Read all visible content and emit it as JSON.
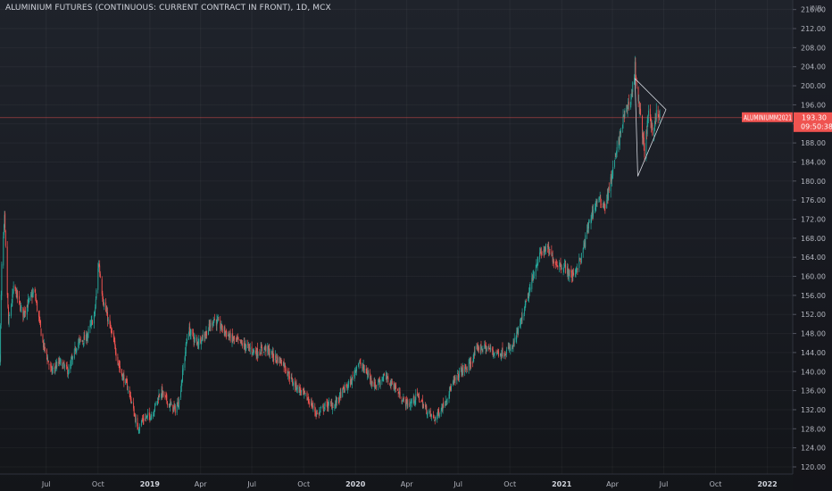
{
  "header": {
    "title": "ALUMINIUM FUTURES (CONTINUOUS: CURRENT CONTRACT IN FRONT), 1D, MCX"
  },
  "price_axis": {
    "currency": "INR"
  },
  "last_price": {
    "symbol": "ALUMINIUMM2021",
    "price": "193.30",
    "countdown": "09:50:38"
  },
  "colors": {
    "up": "#26a69a",
    "down": "#ef5350",
    "pattern": "#d1d4dc",
    "price_line": "#ef5350"
  },
  "chart_data": {
    "type": "candlestick",
    "yticks": [
      120,
      124,
      128,
      132,
      136,
      140,
      144,
      148,
      152,
      156,
      160,
      164,
      168,
      172,
      176,
      180,
      184,
      188,
      192,
      196,
      200,
      204,
      208,
      212,
      216
    ],
    "ylim": [
      118.5,
      218
    ],
    "xlim": [
      "2018-04-10",
      "2022-02-15"
    ],
    "xticks": [
      {
        "label": "Jul",
        "date": "2018-07-01"
      },
      {
        "label": "Oct",
        "date": "2018-10-01"
      },
      {
        "label": "2019",
        "date": "2019-01-01",
        "year": true
      },
      {
        "label": "Apr",
        "date": "2019-04-01"
      },
      {
        "label": "Jul",
        "date": "2019-07-01"
      },
      {
        "label": "Oct",
        "date": "2019-10-01"
      },
      {
        "label": "2020",
        "date": "2020-01-01",
        "year": true
      },
      {
        "label": "Apr",
        "date": "2020-04-01"
      },
      {
        "label": "Jul",
        "date": "2020-07-01"
      },
      {
        "label": "Oct",
        "date": "2020-10-01"
      },
      {
        "label": "2021",
        "date": "2021-01-01",
        "year": true
      },
      {
        "label": "Apr",
        "date": "2021-04-01"
      },
      {
        "label": "Jul",
        "date": "2021-07-01"
      },
      {
        "label": "Oct",
        "date": "2021-10-01"
      },
      {
        "label": "2022",
        "date": "2022-01-01",
        "year": true
      }
    ],
    "price_path": [
      {
        "date": "2018-04-10",
        "close": 143
      },
      {
        "date": "2018-04-13",
        "close": 162
      },
      {
        "date": "2018-04-18",
        "close": 172
      },
      {
        "date": "2018-04-25",
        "close": 150
      },
      {
        "date": "2018-05-05",
        "close": 158
      },
      {
        "date": "2018-05-20",
        "close": 152
      },
      {
        "date": "2018-06-10",
        "close": 157
      },
      {
        "date": "2018-06-25",
        "close": 146
      },
      {
        "date": "2018-07-10",
        "close": 140
      },
      {
        "date": "2018-07-25",
        "close": 142
      },
      {
        "date": "2018-08-10",
        "close": 140
      },
      {
        "date": "2018-08-25",
        "close": 146
      },
      {
        "date": "2018-09-10",
        "close": 147
      },
      {
        "date": "2018-09-25",
        "close": 152
      },
      {
        "date": "2018-10-02",
        "close": 163
      },
      {
        "date": "2018-10-10",
        "close": 155
      },
      {
        "date": "2018-10-25",
        "close": 148
      },
      {
        "date": "2018-11-10",
        "close": 140
      },
      {
        "date": "2018-11-25",
        "close": 136
      },
      {
        "date": "2018-12-10",
        "close": 128
      },
      {
        "date": "2018-12-20",
        "close": 130
      },
      {
        "date": "2019-01-05",
        "close": 131
      },
      {
        "date": "2019-01-20",
        "close": 136
      },
      {
        "date": "2019-02-05",
        "close": 133
      },
      {
        "date": "2019-02-15",
        "close": 132
      },
      {
        "date": "2019-02-22",
        "close": 134
      },
      {
        "date": "2019-03-10",
        "close": 149
      },
      {
        "date": "2019-03-25",
        "close": 146
      },
      {
        "date": "2019-04-10",
        "close": 148
      },
      {
        "date": "2019-04-25",
        "close": 151
      },
      {
        "date": "2019-05-10",
        "close": 149
      },
      {
        "date": "2019-05-25",
        "close": 147
      },
      {
        "date": "2019-06-10",
        "close": 146
      },
      {
        "date": "2019-06-25",
        "close": 145
      },
      {
        "date": "2019-07-10",
        "close": 144
      },
      {
        "date": "2019-07-25",
        "close": 145
      },
      {
        "date": "2019-08-10",
        "close": 143
      },
      {
        "date": "2019-08-25",
        "close": 142
      },
      {
        "date": "2019-09-10",
        "close": 138
      },
      {
        "date": "2019-09-25",
        "close": 136
      },
      {
        "date": "2019-10-10",
        "close": 134
      },
      {
        "date": "2019-10-25",
        "close": 131
      },
      {
        "date": "2019-11-10",
        "close": 133
      },
      {
        "date": "2019-11-25",
        "close": 133
      },
      {
        "date": "2019-12-10",
        "close": 136
      },
      {
        "date": "2019-12-25",
        "close": 138
      },
      {
        "date": "2020-01-05",
        "close": 142
      },
      {
        "date": "2020-01-20",
        "close": 140
      },
      {
        "date": "2020-02-05",
        "close": 137
      },
      {
        "date": "2020-02-20",
        "close": 139
      },
      {
        "date": "2020-03-10",
        "close": 137
      },
      {
        "date": "2020-03-25",
        "close": 134
      },
      {
        "date": "2020-04-05",
        "close": 133
      },
      {
        "date": "2020-04-20",
        "close": 135
      },
      {
        "date": "2020-05-05",
        "close": 132
      },
      {
        "date": "2020-05-20",
        "close": 130
      },
      {
        "date": "2020-06-05",
        "close": 133
      },
      {
        "date": "2020-06-20",
        "close": 137
      },
      {
        "date": "2020-07-05",
        "close": 140
      },
      {
        "date": "2020-07-20",
        "close": 141
      },
      {
        "date": "2020-08-05",
        "close": 145
      },
      {
        "date": "2020-08-20",
        "close": 145
      },
      {
        "date": "2020-09-05",
        "close": 144
      },
      {
        "date": "2020-09-20",
        "close": 144
      },
      {
        "date": "2020-10-05",
        "close": 145
      },
      {
        "date": "2020-10-20",
        "close": 150
      },
      {
        "date": "2020-11-05",
        "close": 157
      },
      {
        "date": "2020-11-20",
        "close": 164
      },
      {
        "date": "2020-12-05",
        "close": 166
      },
      {
        "date": "2020-12-20",
        "close": 163
      },
      {
        "date": "2021-01-05",
        "close": 162
      },
      {
        "date": "2021-01-20",
        "close": 160
      },
      {
        "date": "2021-02-05",
        "close": 164
      },
      {
        "date": "2021-02-20",
        "close": 172
      },
      {
        "date": "2021-03-05",
        "close": 176
      },
      {
        "date": "2021-03-20",
        "close": 175
      },
      {
        "date": "2021-04-05",
        "close": 184
      },
      {
        "date": "2021-04-20",
        "close": 193
      },
      {
        "date": "2021-05-05",
        "close": 198
      },
      {
        "date": "2021-05-11",
        "close": 204
      },
      {
        "date": "2021-05-18",
        "close": 196
      },
      {
        "date": "2021-05-28",
        "close": 186
      },
      {
        "date": "2021-06-05",
        "close": 195
      },
      {
        "date": "2021-06-12",
        "close": 190
      },
      {
        "date": "2021-06-18",
        "close": 194
      },
      {
        "date": "2021-06-24",
        "close": 193.3
      }
    ],
    "pattern": {
      "type": "triangle",
      "points": [
        {
          "date": "2021-05-11",
          "price": 201.5
        },
        {
          "date": "2021-07-05",
          "price": 195
        },
        {
          "date": "2021-05-16",
          "price": 181
        }
      ]
    }
  }
}
